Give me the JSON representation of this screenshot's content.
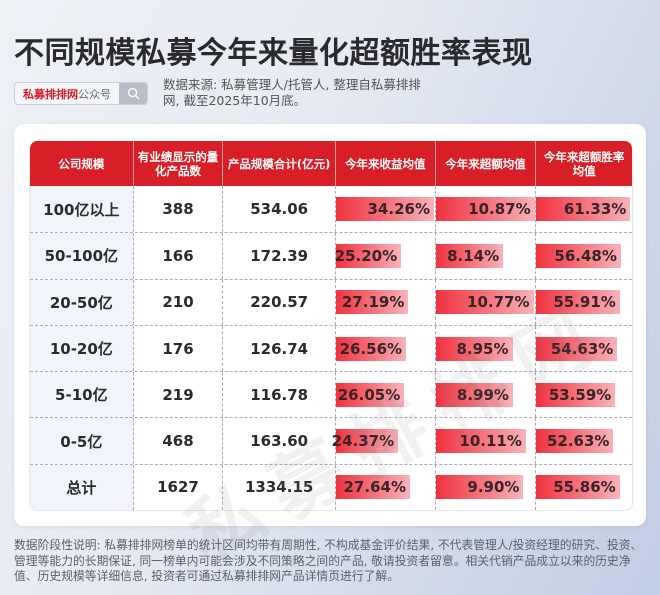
{
  "header": {
    "title": "不同规模私募今年来量化超额胜率表现",
    "search_box": {
      "brand": "私募排排网",
      "suffix": "公众号",
      "icon": "search-icon"
    },
    "source": "数据来源: 私募管理人/托管人, 整理自私募排排网, 截至2025年10月底。"
  },
  "table": {
    "columns": [
      "公司规模",
      "有业绩显示的量化产品数",
      "产品规模合计(亿元)",
      "今年来收益均值",
      "今年来超额均值",
      "今年来超额胜率均值"
    ],
    "rows": [
      {
        "scale": "100亿以上",
        "count": "388",
        "aum": "534.06",
        "ret": "34.26%",
        "excess": "10.87%",
        "winrate": "61.33%"
      },
      {
        "scale": "50-100亿",
        "count": "166",
        "aum": "172.39",
        "ret": "25.20%",
        "excess": "8.14%",
        "winrate": "56.48%"
      },
      {
        "scale": "20-50亿",
        "count": "210",
        "aum": "220.57",
        "ret": "27.19%",
        "excess": "10.77%",
        "winrate": "55.91%"
      },
      {
        "scale": "10-20亿",
        "count": "176",
        "aum": "126.74",
        "ret": "26.56%",
        "excess": "8.95%",
        "winrate": "54.63%"
      },
      {
        "scale": "5-10亿",
        "count": "219",
        "aum": "116.78",
        "ret": "26.05%",
        "excess": "8.99%",
        "winrate": "53.59%"
      },
      {
        "scale": "0-5亿",
        "count": "468",
        "aum": "163.60",
        "ret": "24.37%",
        "excess": "10.11%",
        "winrate": "52.63%"
      },
      {
        "scale": "总计",
        "count": "1627",
        "aum": "1334.15",
        "ret": "27.64%",
        "excess": "9.90%",
        "winrate": "55.86%"
      }
    ]
  },
  "watermark": "私募排排网",
  "footnote": "数据阶段性说明: 私募排排网榜单的统计区间均带有周期性, 不构成基金评价结果, 不代表管理人/投资经理的研究、投资、管理等能力的长期保证, 同一榜单内可能会涉及不同策略之间的产品, 敬请投资者留意。相关代销产品成立以来的历史净值、历史规模等详细信息, 投资者可通过私募排排网产品详情页进行了解。",
  "colors": {
    "header_red": "#d81e26",
    "bar_start": "#f0323f",
    "bar_end": "#f8b3ba",
    "brand_red": "#d2202a"
  },
  "chart_data": {
    "type": "table",
    "title": "不同规模私募今年来量化超额胜率表现",
    "columns": [
      "公司规模",
      "有业绩显示的量化产品数",
      "产品规模合计(亿元)",
      "今年来收益均值",
      "今年来超额均值",
      "今年来超额胜率均值"
    ],
    "categories": [
      "100亿以上",
      "50-100亿",
      "20-50亿",
      "10-20亿",
      "5-10亿",
      "0-5亿",
      "总计"
    ],
    "series": [
      {
        "name": "有业绩显示的量化产品数",
        "values": [
          388,
          166,
          210,
          176,
          219,
          468,
          1627
        ]
      },
      {
        "name": "产品规模合计(亿元)",
        "values": [
          534.06,
          172.39,
          220.57,
          126.74,
          116.78,
          163.6,
          1334.15
        ]
      },
      {
        "name": "今年来收益均值(%)",
        "values": [
          34.26,
          25.2,
          27.19,
          26.56,
          26.05,
          24.37,
          27.64
        ]
      },
      {
        "name": "今年来超额均值(%)",
        "values": [
          10.87,
          8.14,
          10.77,
          8.95,
          8.99,
          10.11,
          9.9
        ]
      },
      {
        "name": "今年来超额胜率均值(%)",
        "values": [
          61.33,
          56.48,
          55.91,
          54.63,
          53.59,
          52.63,
          55.86
        ]
      }
    ],
    "bar_scale_max": {
      "ret": 34.26,
      "excess": 10.87,
      "winrate": 61.33
    },
    "source": "数据来源: 私募管理人/托管人, 整理自私募排排网, 截至2025年10月底。"
  }
}
